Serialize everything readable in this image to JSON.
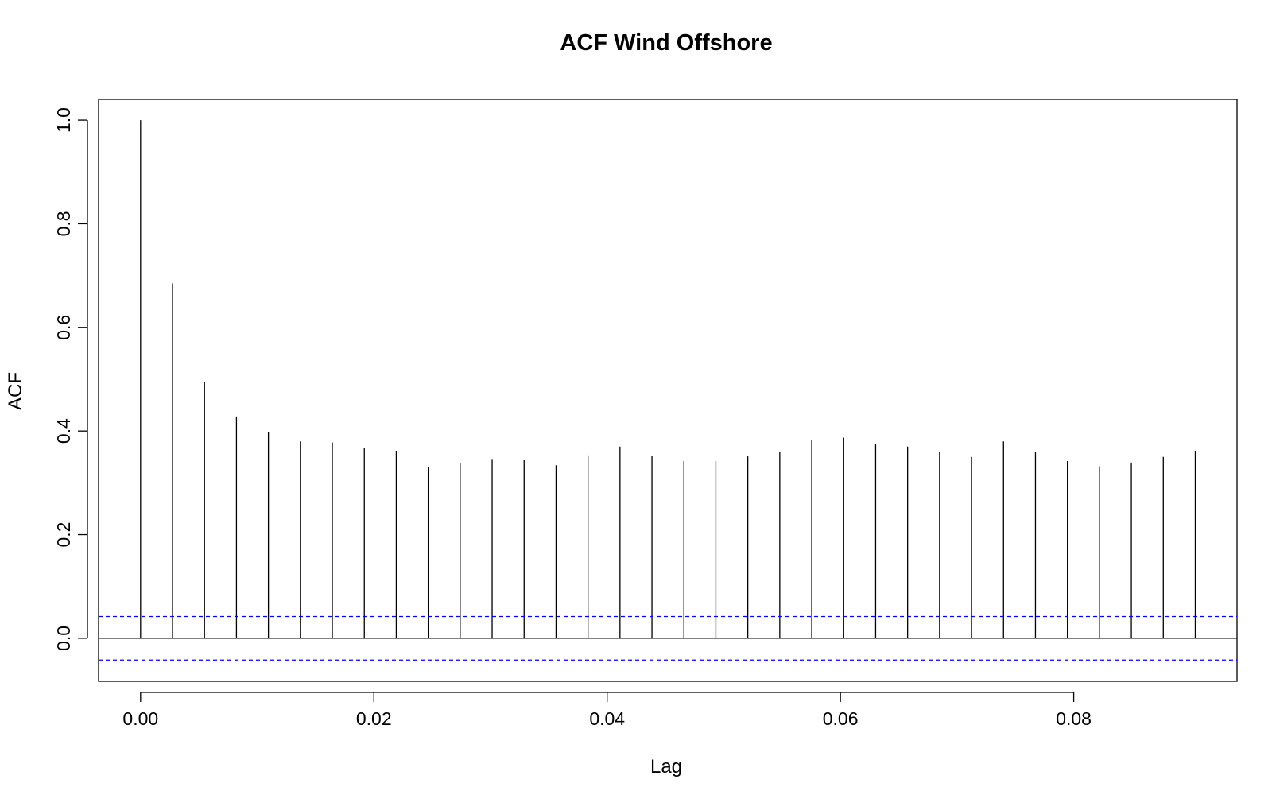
{
  "chart_data": {
    "type": "bar",
    "title": "ACF Wind Offshore",
    "xlabel": "Lag",
    "ylabel": "ACF",
    "lag_step": 0.00274,
    "x": [
      0.0,
      0.00274,
      0.00548,
      0.00822,
      0.01096,
      0.0137,
      0.01644,
      0.01918,
      0.02192,
      0.02466,
      0.0274,
      0.03014,
      0.03288,
      0.03562,
      0.03836,
      0.0411,
      0.04384,
      0.04658,
      0.04932,
      0.05206,
      0.0548,
      0.05754,
      0.06028,
      0.06302,
      0.06576,
      0.0685,
      0.07124,
      0.07398,
      0.07672,
      0.07946,
      0.0822,
      0.08494,
      0.08768,
      0.09042
    ],
    "values": [
      1.0,
      0.685,
      0.495,
      0.428,
      0.398,
      0.38,
      0.378,
      0.367,
      0.362,
      0.33,
      0.338,
      0.346,
      0.344,
      0.334,
      0.353,
      0.37,
      0.352,
      0.342,
      0.342,
      0.351,
      0.36,
      0.382,
      0.387,
      0.375,
      0.37,
      0.36,
      0.35,
      0.38,
      0.36,
      0.342,
      0.332,
      0.339,
      0.35,
      0.362
    ],
    "confidence_limit": 0.042,
    "confidence_color": "#0000ff",
    "xlim": [
      -0.0036,
      0.094
    ],
    "ylim": [
      -0.083,
      1.04
    ],
    "x_ticks": [
      "0.00",
      "0.02",
      "0.04",
      "0.06",
      "0.08"
    ],
    "y_ticks": [
      "0.0",
      "0.2",
      "0.4",
      "0.6",
      "0.8",
      "1.0"
    ],
    "grid": false,
    "legend": "none"
  }
}
